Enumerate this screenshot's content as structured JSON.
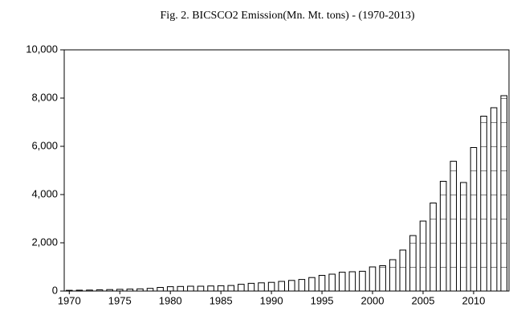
{
  "chart_data": {
    "type": "bar",
    "title": "Fig. 2. BICSCO2 Emission(Mn. Mt. tons) - (1970-2013)",
    "x": [
      1970,
      1971,
      1972,
      1973,
      1974,
      1975,
      1976,
      1977,
      1978,
      1979,
      1980,
      1981,
      1982,
      1983,
      1984,
      1985,
      1986,
      1987,
      1988,
      1989,
      1990,
      1991,
      1992,
      1993,
      1994,
      1995,
      1996,
      1997,
      1998,
      1999,
      2000,
      2001,
      2002,
      2003,
      2004,
      2005,
      2006,
      2007,
      2008,
      2009,
      2010,
      2011,
      2012,
      2013
    ],
    "values": [
      30,
      35,
      40,
      50,
      60,
      70,
      80,
      90,
      110,
      150,
      180,
      190,
      200,
      200,
      210,
      220,
      230,
      280,
      320,
      340,
      360,
      400,
      440,
      480,
      560,
      650,
      700,
      780,
      800,
      820,
      1000,
      1050,
      1300,
      1700,
      2300,
      2900,
      3650,
      4550,
      5380,
      4500,
      5950,
      7250,
      7600,
      8100
    ],
    "color": "#ffffff",
    "xlim": [
      1969.5,
      2013.5
    ],
    "xticks": [
      1970,
      1975,
      1980,
      1985,
      1990,
      1995,
      2000,
      2005,
      2010
    ],
    "ylim": [
      0,
      10000
    ],
    "yticks": [
      0,
      {
        "value": 2000,
        "label": "2,000"
      },
      {
        "value": 4000,
        "label": "4,000"
      },
      {
        "value": 6000,
        "label": "6,000"
      },
      {
        "value": 8000,
        "label": "8,000"
      },
      {
        "value": 10000,
        "label": "10,000"
      }
    ],
    "grid": false
  }
}
